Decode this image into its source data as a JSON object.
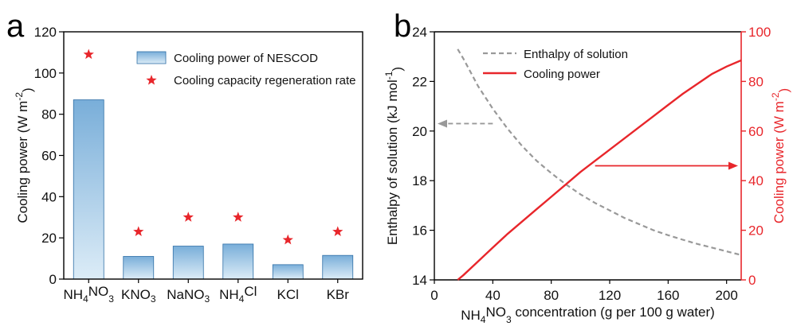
{
  "colors": {
    "bar_top": "#79aed9",
    "bar_bottom": "#dcecf7",
    "bar_stroke": "#2f6fa6",
    "star": "#e8262b",
    "red": "#e8262b",
    "gray": "#999999"
  },
  "chart_data": [
    {
      "panel": "a",
      "type": "bar",
      "categories": [
        {
          "main": "NH",
          "s1": "4",
          "mid": "NO",
          "s2": "3"
        },
        {
          "main": "KNO",
          "s1": "3",
          "mid": "",
          "s2": ""
        },
        {
          "main": "NaNO",
          "s1": "3",
          "mid": "",
          "s2": ""
        },
        {
          "main": "NH",
          "s1": "4",
          "mid": "Cl",
          "s2": ""
        },
        {
          "main": "KCl",
          "s1": "",
          "mid": "",
          "s2": ""
        },
        {
          "main": "KBr",
          "s1": "",
          "mid": "",
          "s2": ""
        }
      ],
      "series": [
        {
          "name": "Cooling power of NESCOD",
          "kind": "bar",
          "values": [
            87,
            11,
            16,
            17,
            7,
            11.5
          ]
        },
        {
          "name": "Cooling capacity regeneration rate",
          "kind": "star",
          "values": [
            109,
            23,
            30,
            30,
            19,
            23
          ]
        }
      ],
      "ylabel": {
        "pre": "Cooling power (W m",
        "sup": "-2",
        "post": ")"
      },
      "ylim": [
        0,
        120
      ],
      "yticks": [
        0,
        20,
        40,
        60,
        80,
        100,
        120
      ],
      "legend_position": "top-right",
      "grid": false
    },
    {
      "panel": "b",
      "type": "line",
      "x": [
        16,
        20,
        30,
        40,
        50,
        60,
        70,
        80,
        90,
        100,
        110,
        120,
        130,
        140,
        150,
        160,
        170,
        180,
        190,
        200,
        210
      ],
      "series": [
        {
          "name": "Enthalpy of solution",
          "axis": "left",
          "style": "dashed",
          "points": [
            [
              16,
              23.3
            ],
            [
              20,
              22.9
            ],
            [
              30,
              21.8
            ],
            [
              40,
              20.9
            ],
            [
              50,
              20.1
            ],
            [
              60,
              19.4
            ],
            [
              70,
              18.8
            ],
            [
              80,
              18.3
            ],
            [
              90,
              17.85
            ],
            [
              100,
              17.45
            ],
            [
              110,
              17.1
            ],
            [
              120,
              16.8
            ],
            [
              130,
              16.5
            ],
            [
              140,
              16.25
            ],
            [
              150,
              16.0
            ],
            [
              160,
              15.8
            ],
            [
              170,
              15.62
            ],
            [
              180,
              15.45
            ],
            [
              190,
              15.3
            ],
            [
              200,
              15.15
            ],
            [
              210,
              15.0
            ]
          ]
        },
        {
          "name": "Cooling power",
          "axis": "right",
          "style": "solid",
          "points": [
            [
              16,
              0
            ],
            [
              20,
              2
            ],
            [
              30,
              7.5
            ],
            [
              40,
              13
            ],
            [
              50,
              18.5
            ],
            [
              60,
              23.5
            ],
            [
              70,
              28.5
            ],
            [
              80,
              33.5
            ],
            [
              90,
              38.5
            ],
            [
              100,
              43.5
            ],
            [
              110,
              48
            ],
            [
              120,
              52.5
            ],
            [
              130,
              57
            ],
            [
              140,
              61.5
            ],
            [
              150,
              66
            ],
            [
              160,
              70.5
            ],
            [
              170,
              75
            ],
            [
              180,
              79
            ],
            [
              190,
              83
            ],
            [
              200,
              86
            ],
            [
              210,
              88.5
            ]
          ]
        }
      ],
      "xlabel": {
        "pre": "NH",
        "s1": "4",
        "mid": "NO",
        "s2": "3",
        "post": " concentration (g per 100 g water)"
      },
      "ylabel_left": {
        "pre": "Enthalpy of solution (kJ mol",
        "sup": "-1",
        "post": ")"
      },
      "ylabel_right": {
        "pre": "Cooling power (W m",
        "sup": "-2",
        "post": ")"
      },
      "xlim": [
        0,
        210
      ],
      "ylim_left": [
        14,
        24
      ],
      "ylim_right": [
        0,
        100
      ],
      "xticks": [
        0,
        40,
        80,
        120,
        160,
        200
      ],
      "yticks_left": [
        14,
        16,
        18,
        20,
        22,
        24
      ],
      "yticks_right": [
        0,
        20,
        40,
        60,
        80,
        100
      ],
      "annotations": [
        {
          "type": "arrow",
          "direction": "left",
          "target_axis": "left",
          "from": [
            40,
            20.3
          ],
          "to": [
            0,
            20.3
          ]
        },
        {
          "type": "arrow",
          "direction": "right",
          "target_axis": "right",
          "from": [
            110,
            46
          ],
          "to": [
            210,
            46
          ]
        }
      ],
      "legend_position": "top-left",
      "grid": false
    }
  ]
}
